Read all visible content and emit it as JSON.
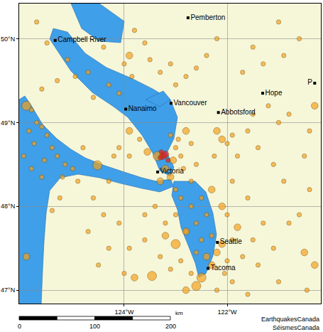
{
  "chart_data": {
    "type": "scatter",
    "marker": "circle",
    "grid": true,
    "xlim": [
      -126.04,
      -120.18
    ],
    "ylim": [
      46.84,
      50.42
    ],
    "xticks": [
      {
        "value": -124,
        "label": "124°W"
      },
      {
        "value": -122,
        "label": "122°W"
      }
    ],
    "yticks": [
      {
        "value": 47,
        "label": "47°N"
      },
      {
        "value": 48,
        "label": "48°N"
      },
      {
        "value": 49,
        "label": "49°N"
      },
      {
        "value": 50,
        "label": "50°N"
      }
    ],
    "series": [
      {
        "color": "#f5a21e",
        "x": [
          -125.9,
          -125.8,
          -125.7,
          -125.85,
          -125.6,
          -125.5,
          -125.75,
          -125.4,
          -125.3,
          -125.55,
          -125.15,
          -125.0,
          -125.2,
          -124.9,
          -125.6,
          -125.8,
          -125.95,
          -125.25,
          -125.4,
          -125.9,
          -125.6,
          -125.3,
          -125.1,
          -124.95,
          -125.7,
          -125.5,
          -124.52,
          -124.3,
          -124.6,
          -124.4,
          -124.1,
          -124.7,
          -124.3,
          -124.5,
          -124.0,
          -124.8,
          -124.2,
          -124.6,
          -124.3,
          -124.0,
          -123.9,
          -123.6,
          -123.8,
          -124.4,
          -124.7,
          -124.1,
          -123.85,
          -123.5,
          -123.3,
          -123.1,
          -123.0,
          -122.8,
          -122.6,
          -122.4,
          -122.2,
          -123.9,
          -123.7,
          -123.55,
          -123.9,
          -124.1,
          -123.35,
          -123.05,
          -123.2,
          -123.1,
          -123.3,
          -123.0,
          -122.95,
          -123.1,
          -122.8,
          -122.7,
          -122.9,
          -122.85,
          -123.0,
          -122.7,
          -122.6,
          -122.2,
          -122.1,
          -122.0,
          -121.9,
          -122.25,
          -121.8,
          -121.6,
          -121.5,
          -121.2,
          -121.0,
          -120.8,
          -121.4,
          -121.1,
          -120.9,
          -120.5,
          -120.4,
          -120.6,
          -121.7,
          -121.3,
          -120.9,
          -120.6,
          -121.0,
          -121.5,
          -120.3,
          -120.4,
          -122.9,
          -122.7,
          -122.5,
          -122.3,
          -122.1,
          -122.0,
          -122.4,
          -122.6,
          -122.8,
          -123.0,
          -123.2,
          -123.4,
          -123.6,
          -123.0,
          -123.2,
          -122.8,
          -122.5,
          -122.3,
          -122.1,
          -121.9,
          -121.8,
          -122.2,
          -122.4,
          -122.6,
          -122.9,
          -123.1,
          -123.46,
          -123.8,
          -122.7,
          -122.5,
          -122.3,
          -122.0,
          -121.7,
          -121.5,
          -121.3,
          -121.6,
          -121.9,
          -122.6,
          -122.8,
          -122.2,
          -121.9,
          -122.05,
          -121.4,
          -121.1,
          -120.8,
          -120.5,
          -120.3,
          -120.45,
          -121.0,
          -121.6,
          -123.3,
          -123.6,
          -123.9
        ],
        "y": [
          49.2,
          49.15,
          49.0,
          48.9,
          48.95,
          48.85,
          48.75,
          48.7,
          48.6,
          48.55,
          48.5,
          48.45,
          48.35,
          48.3,
          48.35,
          48.45,
          48.6,
          48.1,
          47.95,
          47.4,
          49.4,
          49.5,
          49.75,
          49.55,
          50.2,
          49.95,
          48.49,
          48.3,
          48.1,
          47.9,
          47.8,
          47.7,
          47.5,
          47.3,
          47.2,
          48.7,
          48.6,
          49.3,
          49.45,
          49.7,
          49.8,
          49.95,
          50.1,
          49.9,
          49.6,
          49.35,
          49.55,
          49.75,
          49.6,
          49.7,
          49.45,
          49.55,
          49.65,
          49.8,
          50.0,
          48.9,
          48.8,
          48.65,
          48.6,
          48.7,
          48.6,
          48.55,
          48.45,
          48.35,
          48.3,
          48.7,
          48.8,
          48.85,
          48.9,
          48.75,
          48.6,
          48.45,
          48.2,
          48.3,
          48.5,
          48.9,
          48.8,
          48.75,
          48.85,
          48.6,
          48.6,
          48.9,
          49.1,
          49.2,
          49.0,
          49.1,
          48.7,
          48.5,
          48.3,
          48.6,
          48.2,
          47.9,
          49.6,
          49.7,
          49.8,
          50.0,
          50.2,
          49.9,
          49.2,
          48.9,
          48.1,
          48.0,
          48.1,
          48.2,
          48.0,
          47.9,
          47.9,
          47.8,
          47.7,
          47.9,
          47.8,
          48.0,
          47.9,
          47.55,
          47.65,
          47.7,
          47.6,
          47.65,
          47.55,
          47.6,
          47.75,
          47.45,
          47.4,
          47.45,
          47.35,
          47.25,
          47.17,
          47.15,
          47.2,
          47.15,
          47.3,
          47.35,
          47.4,
          47.6,
          47.8,
          48.1,
          48.3,
          47.05,
          47.0,
          47.0,
          47.1,
          47.2,
          47.3,
          47.5,
          47.8,
          47.45,
          47.3,
          47.0,
          47.1,
          46.95,
          47.4,
          47.6,
          47.5
        ],
        "sizes": [
          3,
          1,
          1,
          1,
          1,
          1,
          1,
          1,
          1,
          1,
          1,
          1,
          1,
          1,
          1,
          1,
          1,
          1,
          1,
          2,
          1,
          1,
          1,
          1,
          1,
          1,
          3,
          1,
          1,
          1,
          1,
          1,
          1,
          1,
          1,
          1,
          1,
          1,
          1,
          1,
          2,
          1,
          1,
          1,
          1,
          1,
          1,
          1,
          1,
          1,
          1,
          1,
          1,
          1,
          1,
          2,
          1,
          2,
          1,
          1,
          3,
          2,
          2,
          2,
          2,
          1,
          1,
          1,
          2,
          1,
          1,
          1,
          1,
          1,
          1,
          2,
          2,
          1,
          1,
          1,
          1,
          1,
          1,
          1,
          1,
          1,
          1,
          1,
          1,
          1,
          1,
          1,
          1,
          1,
          1,
          1,
          1,
          1,
          2,
          1,
          1,
          1,
          1,
          2,
          2,
          1,
          1,
          1,
          1,
          1,
          1,
          1,
          1,
          3,
          2,
          2,
          1,
          1,
          2,
          1,
          2,
          2,
          2,
          1,
          1,
          1,
          3,
          2,
          1,
          3,
          2,
          1,
          1,
          1,
          1,
          1,
          1,
          3,
          2,
          1,
          1,
          1,
          1,
          1,
          1,
          2,
          2,
          1,
          1,
          1,
          1,
          1,
          1
        ]
      },
      {
        "color": "#e8201c",
        "x": [
          -123.25,
          -123.2,
          -123.3,
          -123.15,
          -123.28
        ],
        "y": [
          48.6,
          48.62,
          48.58,
          48.55,
          48.65
        ],
        "sizes": [
          2,
          2,
          1,
          1,
          1
        ]
      }
    ],
    "cities": [
      {
        "label": "Campbell River",
        "x": -125.34,
        "y": 49.98
      },
      {
        "label": "Pemberton",
        "x": -122.76,
        "y": 50.25
      },
      {
        "label": "Nanaimo",
        "x": -123.97,
        "y": 49.16
      },
      {
        "label": "Vancouver",
        "x": -123.09,
        "y": 49.23
      },
      {
        "label": "Hope",
        "x": -121.31,
        "y": 49.35
      },
      {
        "label": "Abbotsford",
        "x": -122.17,
        "y": 49.12
      },
      {
        "label": "Victoria",
        "x": -123.35,
        "y": 48.41
      },
      {
        "label": "Seattle",
        "x": -122.19,
        "y": 47.57
      },
      {
        "label": "Tacoma",
        "x": -122.37,
        "y": 47.26
      },
      {
        "label": "P",
        "x": -120.3,
        "y": 49.47
      }
    ],
    "scale_bar": {
      "ticks": [
        0,
        100,
        200
      ],
      "unit": "km"
    },
    "credits": [
      "EarthquakesCanada",
      "SéismesCanada"
    ]
  }
}
